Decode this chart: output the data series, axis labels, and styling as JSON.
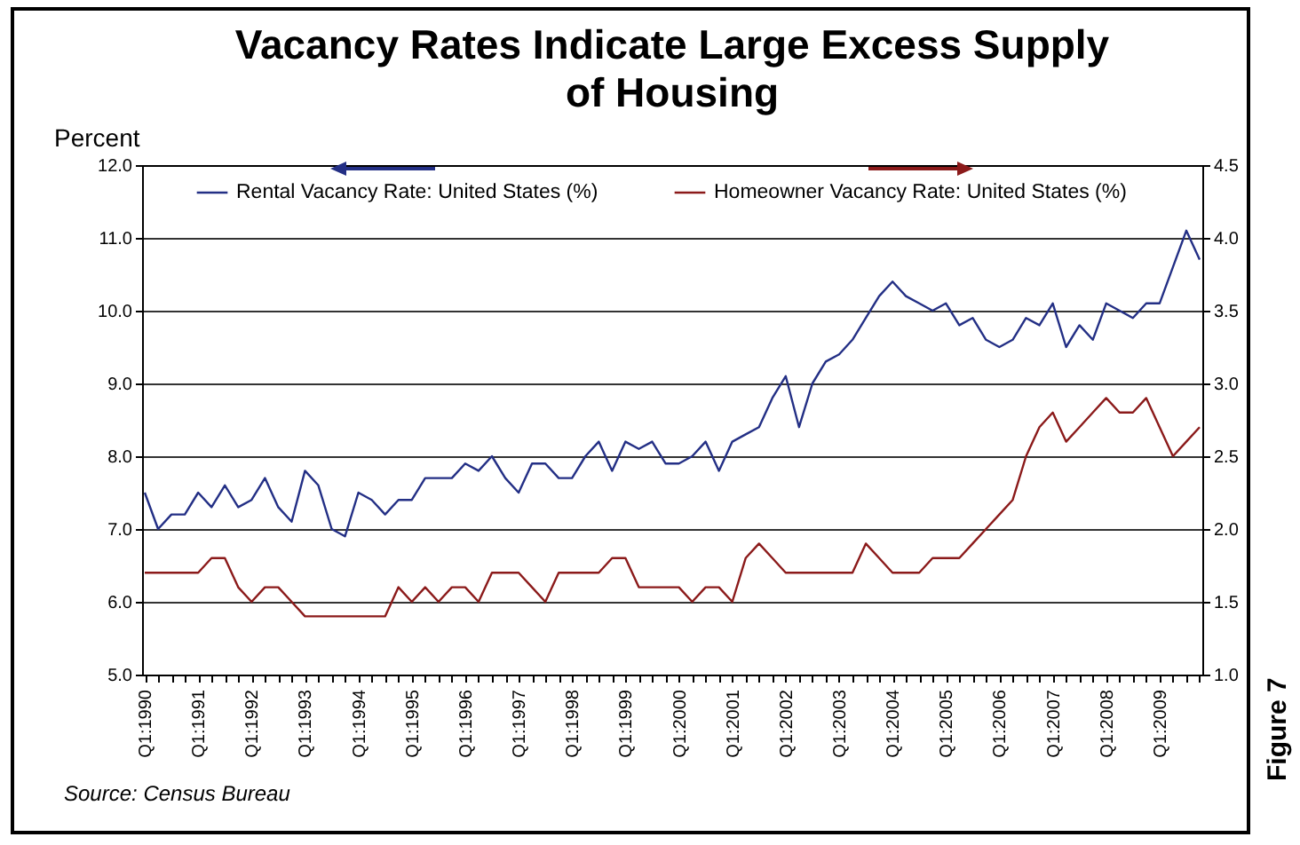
{
  "chart_data": {
    "type": "line",
    "title": "Vacancy Rates Indicate Large Excess Supply of Housing",
    "ylabel": "Percent",
    "categories": [
      "Q1:1990",
      null,
      null,
      null,
      "Q1:1991",
      null,
      null,
      null,
      "Q1:1992",
      null,
      null,
      null,
      "Q1:1993",
      null,
      null,
      null,
      "Q1:1994",
      null,
      null,
      null,
      "Q1:1995",
      null,
      null,
      null,
      "Q1:1996",
      null,
      null,
      null,
      "Q1:1997",
      null,
      null,
      null,
      "Q1:1998",
      null,
      null,
      null,
      "Q1:1999",
      null,
      null,
      null,
      "Q1:2000",
      null,
      null,
      null,
      "Q1:2001",
      null,
      null,
      null,
      "Q1:2002",
      null,
      null,
      null,
      "Q1:2003",
      null,
      null,
      null,
      "Q1:2004",
      null,
      null,
      null,
      "Q1:2005",
      null,
      null,
      null,
      "Q1:2006",
      null,
      null,
      null,
      "Q1:2007",
      null,
      null,
      null,
      "Q1:2008",
      null,
      null,
      null,
      "Q1:2009",
      null,
      null,
      null
    ],
    "series": [
      {
        "name": "Rental Vacancy Rate: United States (%)",
        "color": "#232f85",
        "values": [
          7.5,
          7.0,
          7.2,
          7.2,
          7.5,
          7.3,
          7.6,
          7.3,
          7.4,
          7.7,
          7.3,
          7.1,
          7.8,
          7.6,
          7.0,
          6.9,
          7.5,
          7.4,
          7.2,
          7.4,
          7.4,
          7.7,
          7.7,
          7.7,
          7.9,
          7.8,
          8.0,
          7.7,
          7.5,
          7.9,
          7.9,
          7.7,
          7.7,
          8.0,
          8.2,
          7.8,
          8.2,
          8.1,
          8.2,
          7.9,
          7.9,
          8.0,
          8.2,
          7.8,
          8.2,
          8.3,
          8.4,
          8.8,
          9.1,
          8.4,
          9.0,
          9.3,
          9.4,
          9.6,
          9.9,
          10.2,
          10.4,
          10.2,
          10.1,
          10.0,
          10.1,
          9.8,
          9.9,
          9.6,
          9.5,
          9.6,
          9.9,
          9.8,
          10.1,
          9.5,
          9.8,
          9.6,
          10.1,
          10.0,
          9.9,
          10.1,
          10.1,
          10.6,
          11.1,
          10.7
        ]
      },
      {
        "name": "Homeowner Vacancy Rate: United States (%)",
        "color": "#8b1a1a",
        "axis": "y2",
        "values": [
          1.7,
          1.7,
          1.7,
          1.7,
          1.7,
          1.8,
          1.8,
          1.6,
          1.5,
          1.6,
          1.6,
          1.5,
          1.4,
          1.4,
          1.4,
          1.4,
          1.4,
          1.4,
          1.4,
          1.6,
          1.5,
          1.6,
          1.5,
          1.6,
          1.6,
          1.5,
          1.7,
          1.7,
          1.7,
          1.6,
          1.5,
          1.7,
          1.7,
          1.7,
          1.7,
          1.8,
          1.8,
          1.6,
          1.6,
          1.6,
          1.6,
          1.5,
          1.6,
          1.6,
          1.5,
          1.8,
          1.9,
          1.8,
          1.7,
          1.7,
          1.7,
          1.7,
          1.7,
          1.7,
          1.9,
          1.8,
          1.7,
          1.7,
          1.7,
          1.8,
          1.8,
          1.8,
          1.9,
          2.0,
          2.1,
          2.2,
          2.5,
          2.7,
          2.8,
          2.6,
          2.7,
          2.8,
          2.9,
          2.8,
          2.8,
          2.9,
          2.7,
          2.5,
          2.6,
          2.7
        ]
      }
    ],
    "ylim": [
      5,
      12
    ],
    "yticks": [
      {
        "value": 5,
        "label": "5.0"
      },
      {
        "value": 6,
        "label": "6.0"
      },
      {
        "value": 7,
        "label": "7.0"
      },
      {
        "value": 8,
        "label": "8.0"
      },
      {
        "value": 9,
        "label": "9.0"
      },
      {
        "value": 10,
        "label": "10.0"
      },
      {
        "value": 11,
        "label": "11.0"
      },
      {
        "value": 12,
        "label": "12.0"
      }
    ],
    "y2lim": [
      1,
      4.5
    ],
    "y2ticks": [
      {
        "value": 1,
        "label": "1.0"
      },
      {
        "value": 1.5,
        "label": "1.5"
      },
      {
        "value": 2,
        "label": "2.0"
      },
      {
        "value": 2.5,
        "label": "2.5"
      },
      {
        "value": 3,
        "label": "3.0"
      },
      {
        "value": 3.5,
        "label": "3.5"
      },
      {
        "value": 4,
        "label": "4.0"
      },
      {
        "value": 4.5,
        "label": "4.5"
      }
    ],
    "grid": "y",
    "legend": "top",
    "line_style": "solid",
    "annotations": [
      "Source: Census Bureau",
      "Figure 7"
    ]
  }
}
